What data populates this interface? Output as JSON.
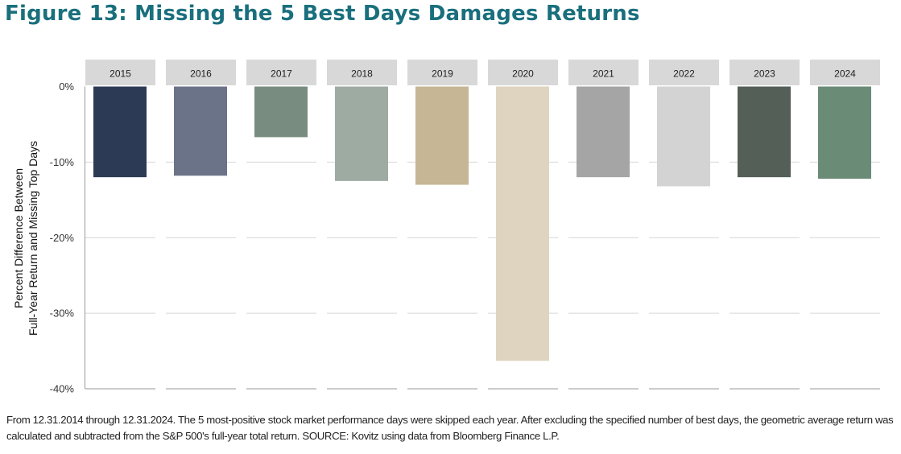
{
  "figure": {
    "title": "Figure 13:  Missing the 5 Best Days Damages Returns",
    "footnote": "From 12.31.2014 through 12.31.2024. The 5 most-positive stock market performance days were skipped each year. After excluding the specified number of best days, the geometric average return was calculated and subtracted from the S&P 500's full-year total return. SOURCE: Kovitz using data from Bloomberg Finance L.P."
  },
  "chart_data": {
    "type": "bar",
    "categories": [
      "2015",
      "2016",
      "2017",
      "2018",
      "2019",
      "2020",
      "2021",
      "2022",
      "2023",
      "2024"
    ],
    "values": [
      -12.0,
      -11.8,
      -6.7,
      -12.5,
      -13.0,
      -36.3,
      -12.0,
      -13.2,
      -12.0,
      -12.2
    ],
    "colors": [
      "#2d3a55",
      "#6b7388",
      "#798c80",
      "#9eaba3",
      "#c6b695",
      "#ded4bf",
      "#a5a5a5",
      "#d3d3d3",
      "#535f57",
      "#6a8b76"
    ],
    "ylabel_lines": [
      "Percent Difference Between",
      "Full-Year Return and Missing Top Days"
    ],
    "ylim": [
      -40,
      0
    ],
    "yticks": [
      0,
      -10,
      -20,
      -30,
      -40
    ],
    "ytick_labels": [
      "0%",
      "-10%",
      "-20%",
      "-30%",
      "-40%"
    ],
    "grid": true,
    "header_color": "#d8d8d8"
  }
}
